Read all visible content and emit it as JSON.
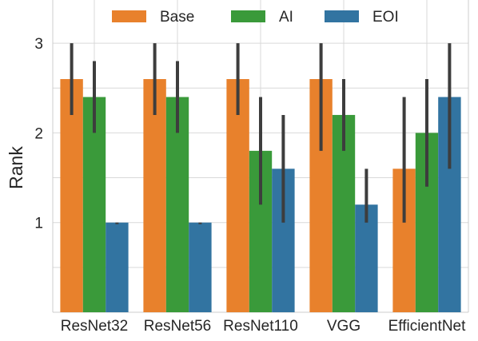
{
  "chart_data": {
    "type": "bar",
    "title": "",
    "xlabel": "",
    "ylabel": "Rank",
    "ylim": [
      0,
      3.35
    ],
    "yticks": [
      1,
      2,
      3
    ],
    "grid": true,
    "legend_position": "top",
    "categories": [
      "ResNet32",
      "ResNet56",
      "ResNet110",
      "VGG",
      "EfficientNet"
    ],
    "series": [
      {
        "name": "Base",
        "color": "#e8812c",
        "values": [
          2.6,
          2.6,
          2.6,
          2.6,
          1.6
        ],
        "err_low": [
          2.2,
          2.2,
          2.2,
          1.8,
          1.0
        ],
        "err_high": [
          3.0,
          3.0,
          3.0,
          3.0,
          2.4
        ]
      },
      {
        "name": "AI",
        "color": "#3a9a3a",
        "values": [
          2.4,
          2.4,
          1.8,
          2.2,
          2.0
        ],
        "err_low": [
          2.0,
          2.0,
          1.2,
          1.8,
          1.4
        ],
        "err_high": [
          2.8,
          2.8,
          2.4,
          2.6,
          2.6
        ]
      },
      {
        "name": "EOI",
        "color": "#3274a1",
        "values": [
          1.0,
          1.0,
          1.6,
          1.2,
          2.4
        ],
        "err_low": [
          1.0,
          1.0,
          1.0,
          1.0,
          1.6
        ],
        "err_high": [
          1.0,
          1.0,
          2.2,
          1.6,
          3.0
        ]
      }
    ]
  }
}
